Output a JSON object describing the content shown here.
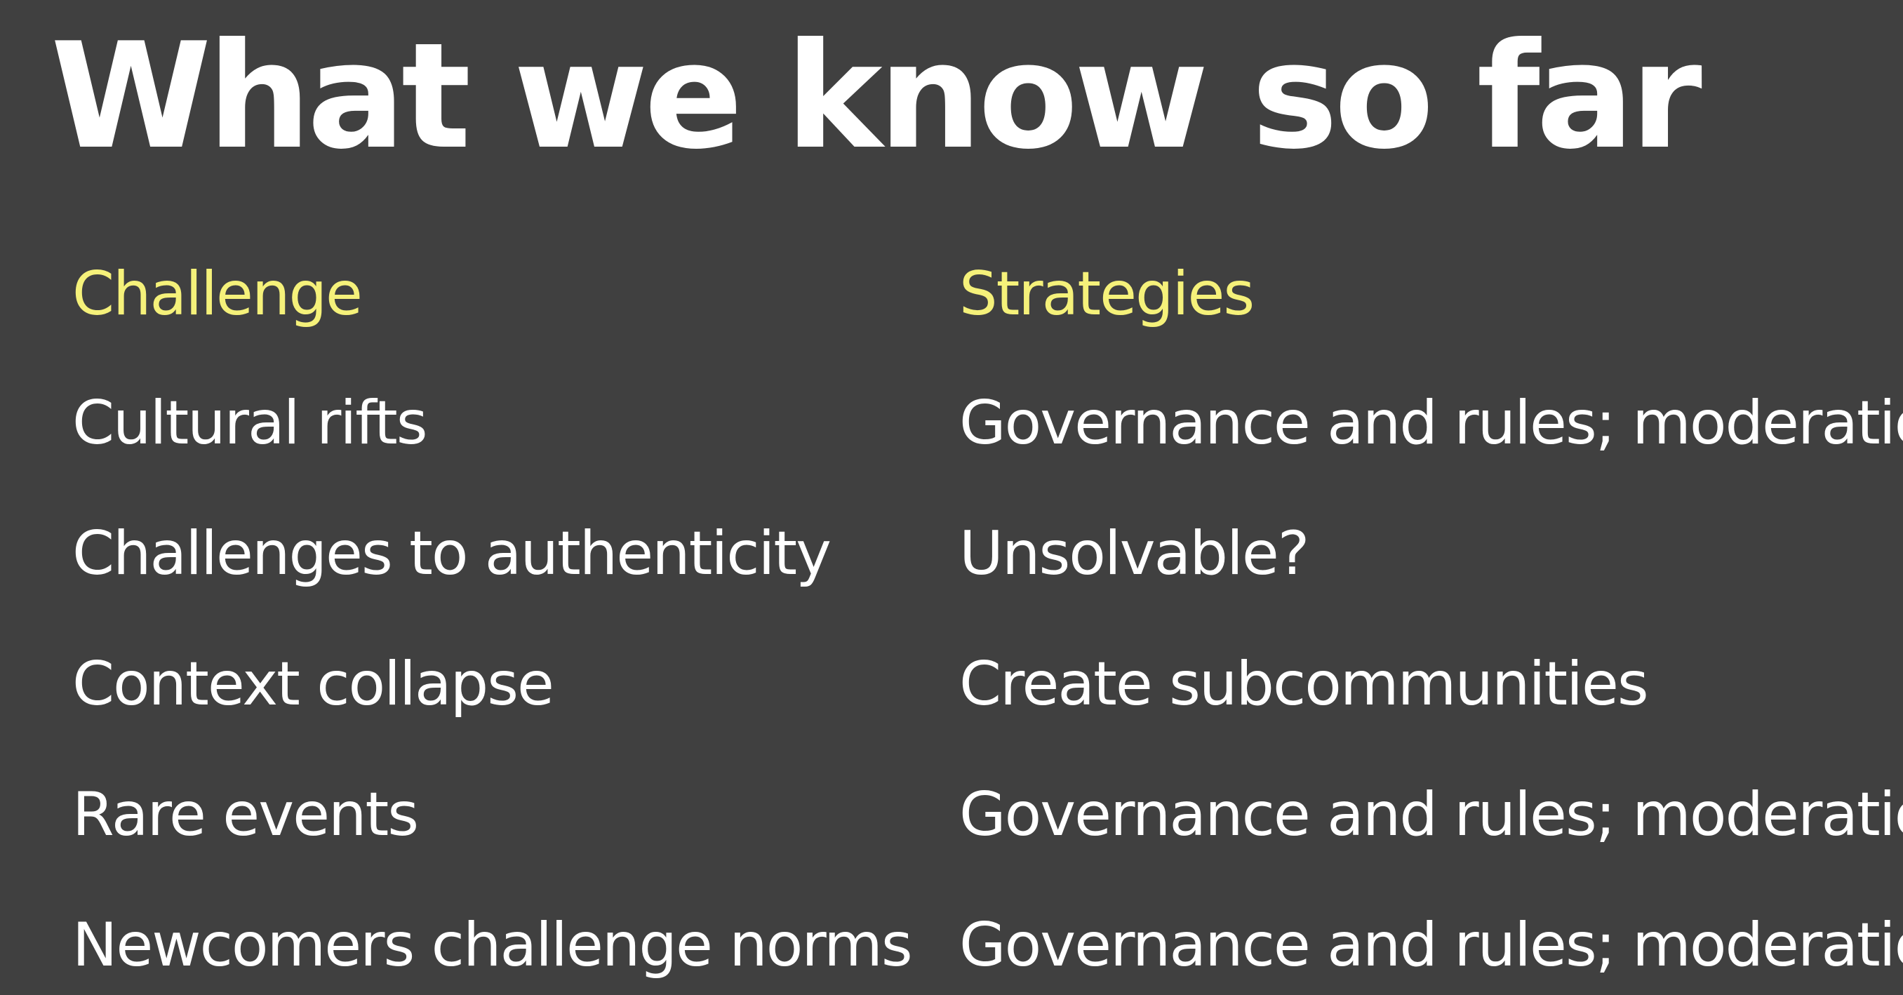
{
  "slide": {
    "title": "What we know so far"
  },
  "table": {
    "headers": {
      "challenge": "Challenge",
      "strategies": "Strategies"
    },
    "rows": [
      {
        "challenge": "Cultural rifts",
        "strategy": "Governance and rules; moderation"
      },
      {
        "challenge": "Challenges to authenticity",
        "strategy": "Unsolvable?"
      },
      {
        "challenge": "Context collapse",
        "strategy": "Create subcommunities"
      },
      {
        "challenge": "Rare events",
        "strategy": "Governance and rules; moderation"
      },
      {
        "challenge": "Newcomers challenge norms",
        "strategy": "Governance and rules; moderation"
      }
    ]
  },
  "colors": {
    "background": "#404040",
    "text": "#ffffff",
    "header_accent": "#f5f17a"
  }
}
